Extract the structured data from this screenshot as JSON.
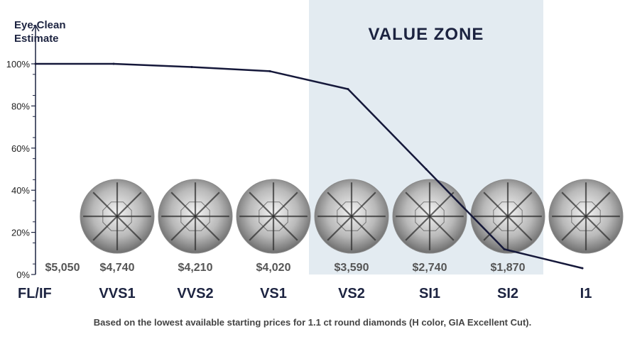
{
  "chart_data": {
    "type": "line",
    "title": "VALUE ZONE",
    "ylabel_lines": [
      "Eye-Clean",
      "Estimate"
    ],
    "categories": [
      "FL/IF",
      "VVS1",
      "VVS2",
      "VS1",
      "VS2",
      "SI1",
      "SI2",
      "I1"
    ],
    "series": [
      {
        "values": [
          100,
          100,
          98.5,
          96.5,
          88,
          50,
          12,
          3
        ]
      }
    ],
    "prices": [
      "$5,050",
      "$4,740",
      "$4,210",
      "$4,020",
      "$3,590",
      "$2,740",
      "$1,870",
      ""
    ],
    "highlight_range": [
      "VS2",
      "SI2"
    ],
    "ylim": [
      0,
      100
    ],
    "yticks": [
      "0%",
      "20%",
      "40%",
      "60%",
      "80%",
      "100%"
    ],
    "grid": false,
    "colors": {
      "line": "#15183a",
      "zone": "#e3ebf1",
      "axis": "#1c2340",
      "price": "#555555"
    },
    "footnote": "Based on the lowest available starting prices for 1.1 ct round diamonds (H color, GIA Excellent Cut)."
  }
}
